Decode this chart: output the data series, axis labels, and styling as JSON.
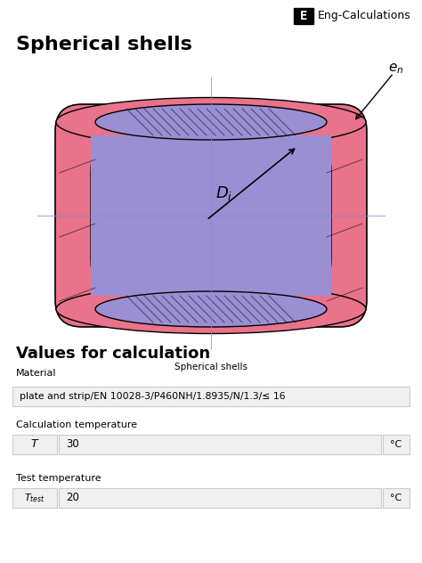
{
  "title": "Spherical shells",
  "logo_text": "Eng-Calculations",
  "logo_letter": "E",
  "diagram_caption": "Spherical shells",
  "purple_color": "#9B8FD4",
  "pink_color": "#E8738A",
  "background_color": "#FFFFFF",
  "Di_label": "D_i",
  "en_label": "e_n",
  "values_title": "Values for calculation",
  "material_label": "Material",
  "material_value": "plate and strip/EN 10028-3/P460NH/1.8935/N/1.3/≤ 16",
  "calc_temp_label": "Calculation temperature",
  "calc_temp_var": "T",
  "calc_temp_value": "30",
  "calc_temp_unit": "°C",
  "test_temp_label": "Test temperature",
  "test_temp_var": "T_test",
  "test_temp_value": "20",
  "test_temp_unit": "°C",
  "box_color": "#F0F0F0",
  "box_border": "#CCCCCC",
  "grid_color": "#8888CC",
  "crosshair_color": "#8888CC"
}
